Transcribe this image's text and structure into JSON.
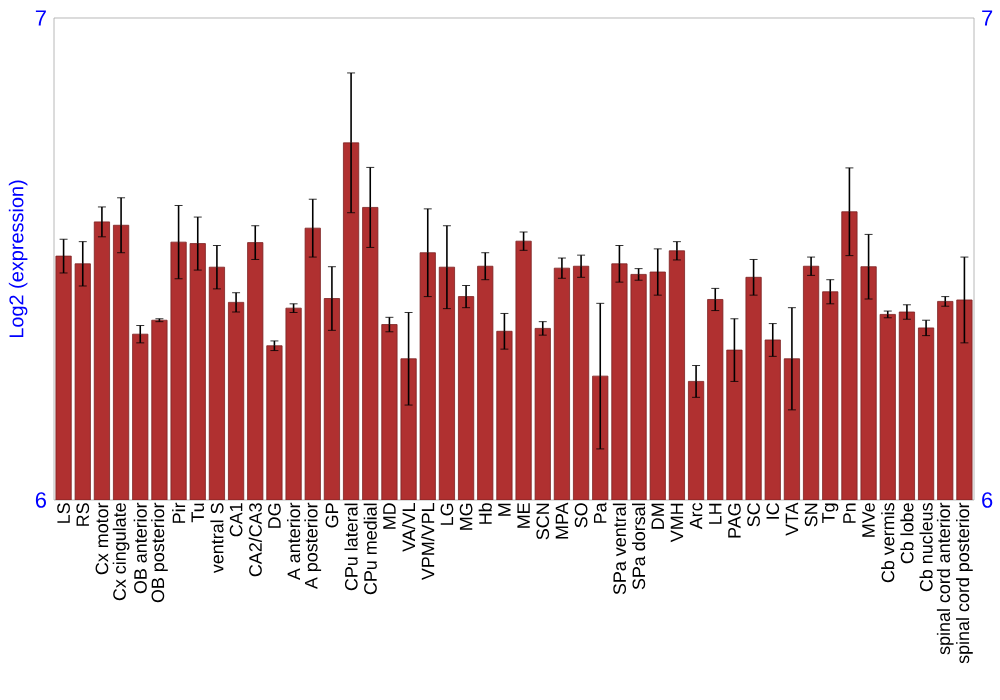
{
  "chart_data": {
    "type": "bar",
    "ylabel": "Log2 (expression)",
    "color": "#b03030",
    "categories": [
      "LS",
      "RS",
      "Cx motor",
      "Cx cingulate",
      "OB anterior",
      "OB posterior",
      "Pir",
      "Tu",
      "ventral S",
      "CA1",
      "CA2/CA3",
      "DG",
      "A anterior",
      "A posterior",
      "GP",
      "CPu lateral",
      "CPu medial",
      "MD",
      "VA/VL",
      "VPM/VPL",
      "LG",
      "MG",
      "Hb",
      "M",
      "ME",
      "SCN",
      "MPA",
      "SO",
      "Pa",
      "SPa ventral",
      "SPa dorsal",
      "DM",
      "VMH",
      "Arc",
      "LH",
      "PAG",
      "SC",
      "IC",
      "VTA",
      "SN",
      "Tg",
      "Pn",
      "MVe",
      "Cb vermis",
      "Cb lobe",
      "Cb nucleus",
      "spinal cord anterior",
      "spinal cord posterior"
    ],
    "values": [
      6.506,
      6.49,
      6.577,
      6.57,
      6.344,
      6.373,
      6.535,
      6.532,
      6.483,
      6.41,
      6.534,
      6.32,
      6.398,
      6.564,
      6.418,
      6.741,
      6.607,
      6.364,
      6.293,
      6.513,
      6.483,
      6.422,
      6.485,
      6.35,
      6.537,
      6.356,
      6.481,
      6.485,
      6.257,
      6.49,
      6.468,
      6.473,
      6.517,
      6.246,
      6.416,
      6.311,
      6.462,
      6.332,
      6.293,
      6.485,
      6.432,
      6.598,
      6.484,
      6.385,
      6.39,
      6.357,
      6.412,
      6.415
    ],
    "errors": [
      0.035,
      0.046,
      0.031,
      0.057,
      0.018,
      0.003,
      0.076,
      0.055,
      0.045,
      0.02,
      0.035,
      0.01,
      0.009,
      0.06,
      0.066,
      0.145,
      0.083,
      0.015,
      0.096,
      0.091,
      0.086,
      0.023,
      0.028,
      0.037,
      0.019,
      0.014,
      0.021,
      0.023,
      0.151,
      0.038,
      0.012,
      0.048,
      0.019,
      0.033,
      0.023,
      0.065,
      0.037,
      0.034,
      0.106,
      0.019,
      0.025,
      0.091,
      0.067,
      0.007,
      0.015,
      0.016,
      0.01,
      0.089
    ],
    "ylim": [
      6,
      7
    ],
    "yticks": [
      6,
      7
    ],
    "y2lim": [
      6,
      7
    ],
    "y2ticks": [
      6,
      7
    ]
  }
}
